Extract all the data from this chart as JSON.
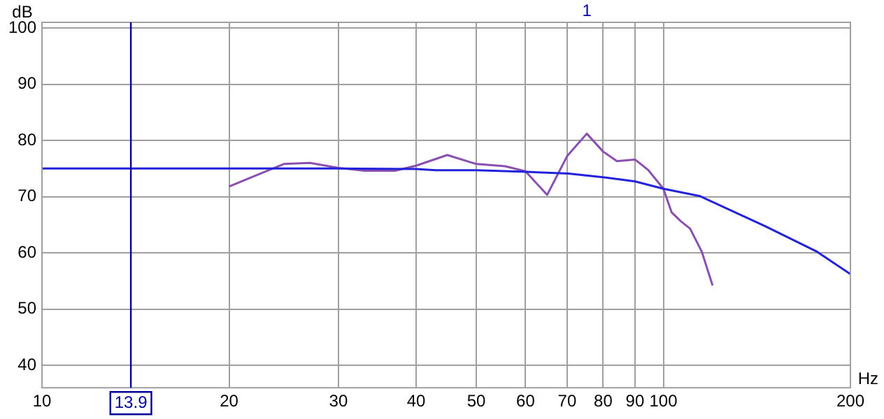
{
  "chart_data": {
    "type": "line",
    "xlabel": "Hz",
    "ylabel": "dB",
    "log": "x",
    "grid": true,
    "legend": false,
    "marker": "none",
    "line_style": "solid",
    "xlim": [
      10,
      200
    ],
    "xticks": [
      10,
      20,
      30,
      40,
      50,
      60,
      70,
      80,
      90,
      100,
      200
    ],
    "ylim": [
      36,
      101
    ],
    "yticks": [
      40,
      50,
      60,
      70,
      80,
      90,
      100
    ],
    "series": [
      {
        "color": "#2222dd",
        "x": [
          10,
          20,
          30,
          40,
          43,
          50,
          60.1,
          70.3,
          80.8,
          90,
          100,
          114.4,
          146,
          176.7,
          200
        ],
        "values": [
          75,
          75,
          75,
          74.9,
          74.7,
          74.7,
          74.4,
          74.1,
          73.4,
          72.7,
          71.4,
          70.1,
          64.7,
          60.2,
          56.2
        ]
      },
      {
        "color": "#8a50b0",
        "x": [
          20,
          24.5,
          27,
          30,
          33,
          37,
          40,
          44.9,
          50,
          55.6,
          60,
          65,
          70,
          75.3,
          80,
          84.2,
          90,
          94.6,
          100,
          103.1,
          106.7,
          110.4,
          115.3,
          120
        ],
        "values": [
          71.8,
          75.8,
          76,
          75.1,
          74.6,
          74.6,
          75.5,
          77.4,
          75.8,
          75.4,
          74.5,
          70.3,
          77.2,
          81.2,
          78,
          76.3,
          76.6,
          74.7,
          71.4,
          67.2,
          65.6,
          64.3,
          60.2,
          54.2
        ]
      }
    ],
    "ref_lines": [
      {
        "axis": "x",
        "value": 13.9,
        "label": "13.9",
        "color": "#000099"
      }
    ],
    "annotations": [
      "1"
    ]
  }
}
